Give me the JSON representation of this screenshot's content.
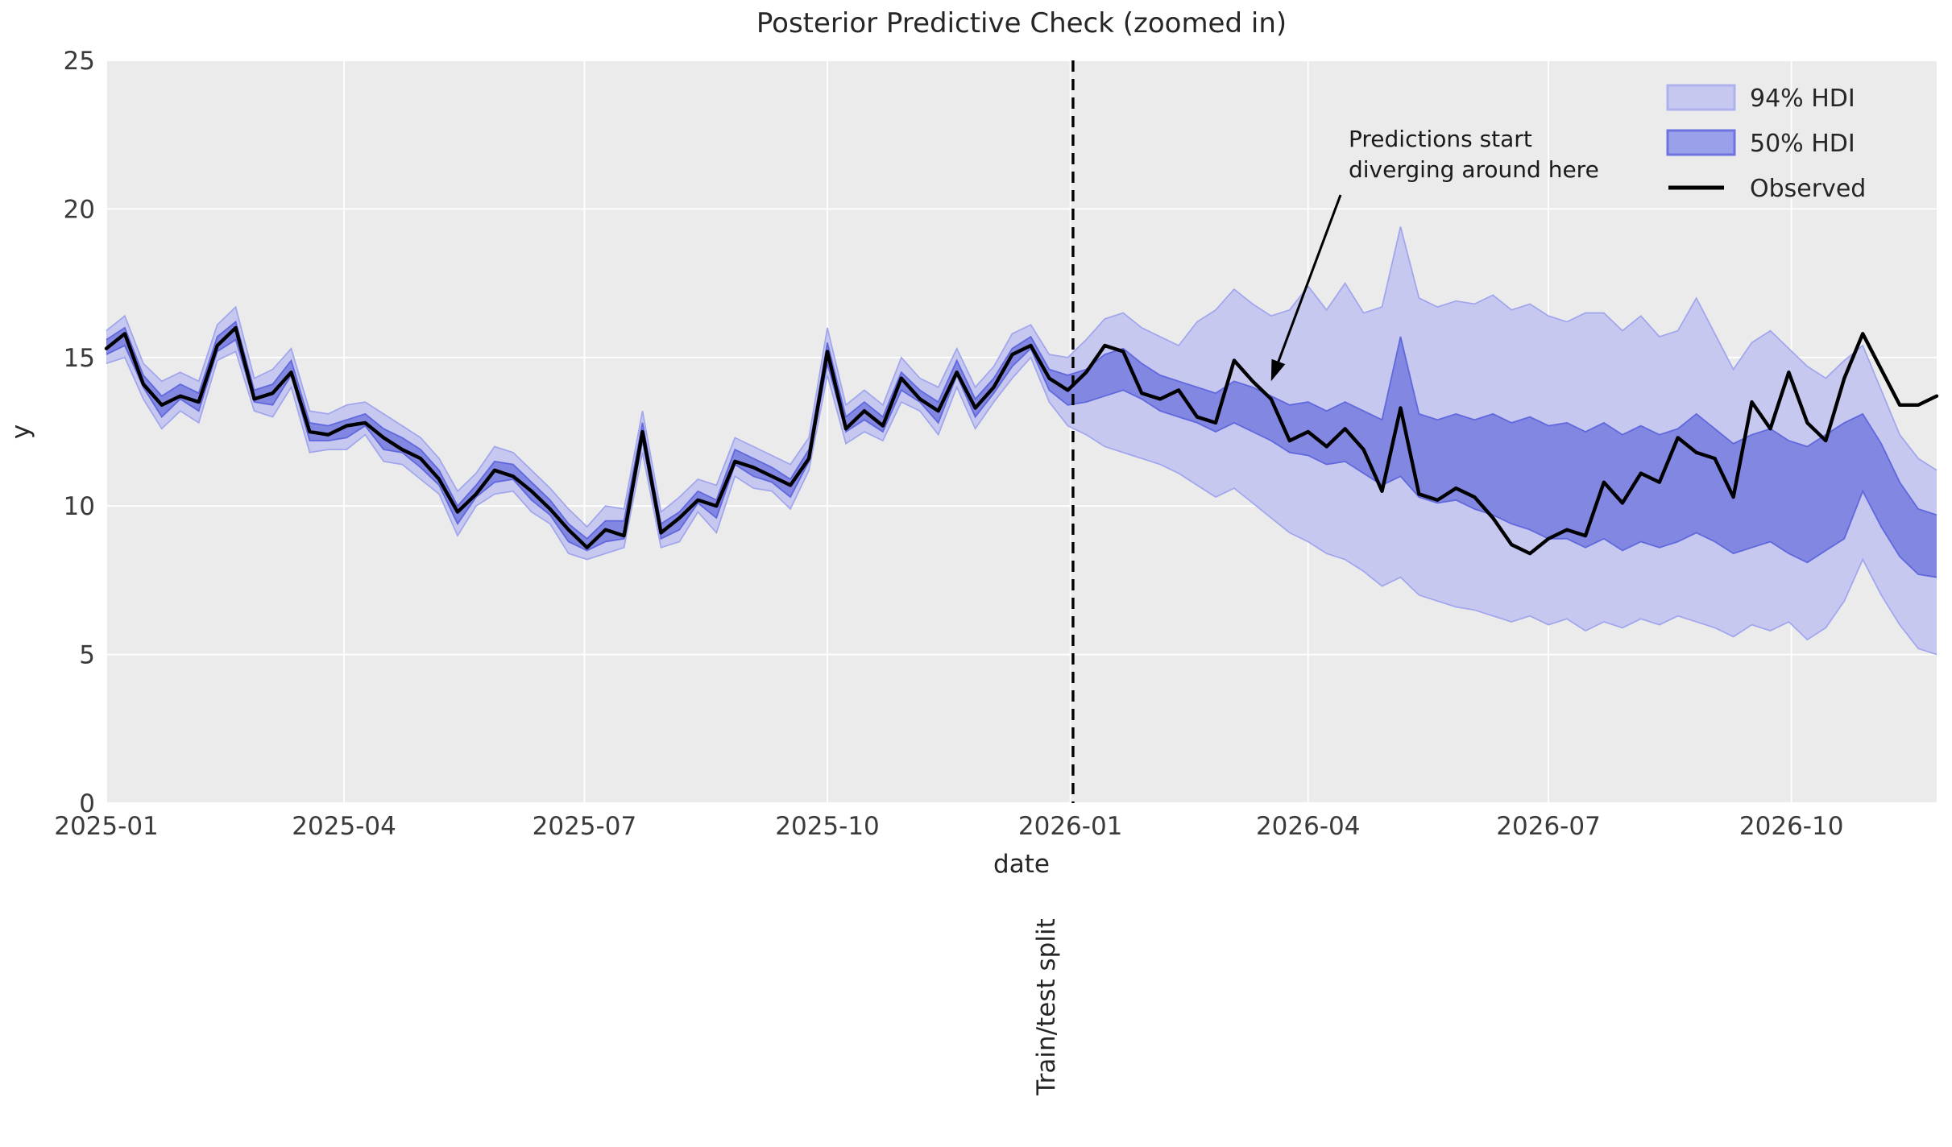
{
  "chart_data": {
    "type": "line",
    "title": "Posterior Predictive Check (zoomed in)",
    "xlabel": "date",
    "ylabel": "y",
    "ylim": [
      0,
      25
    ],
    "yticks": [
      0,
      5,
      10,
      15,
      20,
      25
    ],
    "xticks": [
      {
        "label": "2025-01",
        "day_offset": 0
      },
      {
        "label": "2025-04",
        "day_offset": 90
      },
      {
        "label": "2025-07",
        "day_offset": 181
      },
      {
        "label": "2025-10",
        "day_offset": 273
      },
      {
        "label": "2026-01",
        "day_offset": 365
      },
      {
        "label": "2026-04",
        "day_offset": 455
      },
      {
        "label": "2026-07",
        "day_offset": 546
      },
      {
        "label": "2026-10",
        "day_offset": 638
      }
    ],
    "grid": true,
    "x_start_date": "2025-01-04",
    "x_interval_days": 7,
    "n_points": 100,
    "split_index": 52,
    "split_day_offset": 366,
    "split_label": "Train/test split",
    "legend": {
      "position": "upper right",
      "entries": [
        {
          "label": "94% HDI",
          "type": "band"
        },
        {
          "label": "50% HDI",
          "type": "band"
        },
        {
          "label": "Observed",
          "type": "line"
        }
      ]
    },
    "annotation": {
      "line1": "Predictions start",
      "line2": "diverging around here",
      "arrow_tip_index": 63,
      "arrow_tip_value": 14.2
    },
    "series": [
      {
        "name": "Observed",
        "type": "line",
        "values": [
          15.3,
          15.8,
          14.1,
          13.4,
          13.7,
          13.5,
          15.4,
          16.0,
          13.6,
          13.8,
          14.5,
          12.5,
          12.4,
          12.7,
          12.8,
          12.3,
          11.9,
          11.6,
          10.9,
          9.8,
          10.4,
          11.2,
          11.0,
          10.5,
          9.9,
          9.2,
          8.6,
          9.2,
          9.0,
          12.5,
          9.1,
          9.6,
          10.2,
          10.0,
          11.5,
          11.3,
          11.0,
          10.7,
          11.6,
          15.2,
          12.6,
          13.2,
          12.7,
          14.3,
          13.6,
          13.2,
          14.5,
          13.3,
          14.0,
          15.1,
          15.4,
          14.3,
          13.9,
          14.5,
          15.4,
          15.2,
          13.8,
          13.6,
          13.9,
          13.0,
          12.8,
          14.9,
          14.2,
          13.6,
          12.2,
          12.5,
          12.0,
          12.6,
          11.9,
          10.5,
          13.3,
          10.4,
          10.2,
          10.6,
          10.3,
          9.6,
          8.7,
          8.4,
          8.9,
          9.2,
          9.0,
          10.8,
          10.1,
          11.1,
          10.8,
          12.3,
          11.8,
          11.6,
          10.3,
          13.5,
          12.6,
          14.5,
          12.8,
          12.2,
          14.3,
          15.8,
          14.6,
          13.4,
          13.4,
          13.7
        ]
      },
      {
        "name": "94% HDI",
        "type": "band",
        "upper": [
          15.9,
          16.4,
          14.8,
          14.2,
          14.5,
          14.2,
          16.1,
          16.7,
          14.3,
          14.6,
          15.3,
          13.2,
          13.1,
          13.4,
          13.5,
          13.1,
          12.7,
          12.3,
          11.6,
          10.5,
          11.1,
          12.0,
          11.8,
          11.2,
          10.6,
          9.9,
          9.3,
          10.0,
          9.9,
          13.2,
          9.8,
          10.3,
          10.9,
          10.7,
          12.3,
          12.0,
          11.7,
          11.4,
          12.3,
          16.0,
          13.4,
          13.9,
          13.4,
          15.0,
          14.3,
          14.0,
          15.3,
          14.0,
          14.7,
          15.8,
          16.1,
          15.1,
          15.0,
          15.6,
          16.3,
          16.5,
          16.0,
          15.7,
          15.4,
          16.2,
          16.6,
          17.3,
          16.8,
          16.4,
          16.6,
          17.4,
          16.6,
          17.5,
          16.5,
          16.7,
          19.4,
          17.0,
          16.7,
          16.9,
          16.8,
          17.1,
          16.6,
          16.8,
          16.4,
          16.2,
          16.5,
          16.5,
          15.9,
          16.4,
          15.7,
          15.9,
          17.0,
          15.8,
          14.6,
          15.5,
          15.9,
          15.3,
          14.7,
          14.3,
          14.9,
          15.4,
          13.9,
          12.4,
          11.6,
          11.2
        ],
        "lower": [
          14.8,
          15.0,
          13.6,
          12.6,
          13.2,
          12.8,
          14.9,
          15.2,
          13.2,
          13.0,
          14.0,
          11.8,
          11.9,
          11.9,
          12.4,
          11.5,
          11.4,
          10.9,
          10.4,
          9.0,
          10.0,
          10.4,
          10.5,
          9.8,
          9.4,
          8.4,
          8.2,
          8.4,
          8.6,
          11.8,
          8.6,
          8.8,
          9.8,
          9.1,
          11.0,
          10.6,
          10.5,
          9.9,
          11.2,
          14.4,
          12.1,
          12.5,
          12.2,
          13.5,
          13.2,
          12.4,
          14.0,
          12.6,
          13.5,
          14.3,
          15.0,
          13.5,
          12.7,
          12.4,
          12.0,
          11.8,
          11.6,
          11.4,
          11.1,
          10.7,
          10.3,
          10.6,
          10.1,
          9.6,
          9.1,
          8.8,
          8.4,
          8.2,
          7.8,
          7.3,
          7.6,
          7.0,
          6.8,
          6.6,
          6.5,
          6.3,
          6.1,
          6.3,
          6.0,
          6.2,
          5.8,
          6.1,
          5.9,
          6.2,
          6.0,
          6.3,
          6.1,
          5.9,
          5.6,
          6.0,
          5.8,
          6.1,
          5.5,
          5.9,
          6.8,
          8.2,
          7.0,
          6.0,
          5.2,
          5.0
        ]
      },
      {
        "name": "50% HDI",
        "type": "band",
        "upper": [
          15.6,
          16.0,
          14.4,
          13.7,
          14.1,
          13.8,
          15.7,
          16.2,
          13.9,
          14.1,
          14.9,
          12.8,
          12.7,
          12.9,
          13.1,
          12.6,
          12.3,
          11.9,
          11.2,
          10.0,
          10.7,
          11.5,
          11.4,
          10.8,
          10.2,
          9.4,
          8.9,
          9.5,
          9.5,
          12.8,
          9.4,
          9.8,
          10.5,
          10.2,
          11.9,
          11.6,
          11.3,
          10.9,
          11.9,
          15.5,
          13.0,
          13.5,
          13.0,
          14.5,
          13.9,
          13.5,
          14.9,
          13.6,
          14.3,
          15.3,
          15.7,
          14.6,
          14.4,
          14.6,
          15.1,
          15.3,
          14.8,
          14.4,
          14.2,
          14.0,
          13.8,
          14.2,
          14.0,
          13.7,
          13.4,
          13.5,
          13.2,
          13.5,
          13.2,
          12.9,
          15.7,
          13.1,
          12.9,
          13.1,
          12.9,
          13.1,
          12.8,
          13.0,
          12.7,
          12.8,
          12.5,
          12.8,
          12.4,
          12.7,
          12.4,
          12.6,
          13.1,
          12.6,
          12.1,
          12.4,
          12.6,
          12.2,
          12.0,
          12.4,
          12.8,
          13.1,
          12.1,
          10.8,
          9.9,
          9.7
        ],
        "lower": [
          15.1,
          15.4,
          14.0,
          13.0,
          13.6,
          13.2,
          15.2,
          15.6,
          13.5,
          13.4,
          14.4,
          12.2,
          12.2,
          12.3,
          12.7,
          11.9,
          11.8,
          11.3,
          10.7,
          9.4,
          10.3,
          10.8,
          10.9,
          10.2,
          9.7,
          8.8,
          8.5,
          8.8,
          8.9,
          12.2,
          8.9,
          9.2,
          10.1,
          9.6,
          11.4,
          11.0,
          10.8,
          10.3,
          11.5,
          14.8,
          12.5,
          12.9,
          12.5,
          13.9,
          13.5,
          12.8,
          14.4,
          13.0,
          13.8,
          14.7,
          15.3,
          13.9,
          13.4,
          13.5,
          13.7,
          13.9,
          13.6,
          13.2,
          13.0,
          12.8,
          12.5,
          12.8,
          12.5,
          12.2,
          11.8,
          11.7,
          11.4,
          11.5,
          11.1,
          10.7,
          11.0,
          10.3,
          10.1,
          10.2,
          9.9,
          9.7,
          9.4,
          9.2,
          8.9,
          8.9,
          8.6,
          8.9,
          8.5,
          8.8,
          8.6,
          8.8,
          9.1,
          8.8,
          8.4,
          8.6,
          8.8,
          8.4,
          8.1,
          8.5,
          8.9,
          10.5,
          9.3,
          8.3,
          7.7,
          7.6
        ]
      }
    ],
    "colors": {
      "panel": "#ebebeb",
      "grid": "#ffffff",
      "observed": "#000000",
      "hdi94_fill": "#c6c8ef",
      "hdi94_edge": "#9aa0ec",
      "hdi50_fill": "#8287e1",
      "hdi50_edge": "#5a62dc",
      "split_line": "#000000",
      "annotation_arrow": "#000000",
      "legend_94_swatch_fill": "#c6c8ef",
      "legend_94_swatch_border": "#aeb2ec",
      "legend_50_swatch_fill": "#9aa0ea",
      "legend_50_swatch_border": "#6d74e0"
    }
  }
}
